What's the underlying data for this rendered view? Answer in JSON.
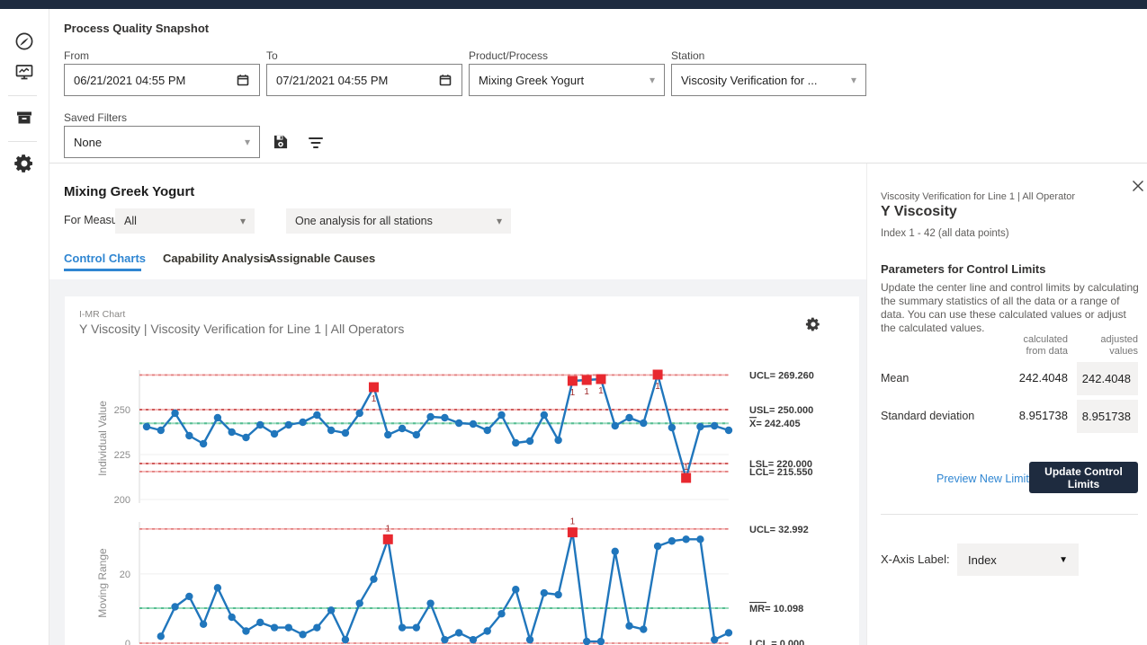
{
  "filters": {
    "title": "Process Quality Snapshot",
    "from": {
      "label": "From",
      "value": "06/21/2021 04:55 PM"
    },
    "to": {
      "label": "To",
      "value": "07/21/2021 04:55 PM"
    },
    "product": {
      "label": "Product/Process",
      "value": "Mixing Greek Yogurt"
    },
    "station": {
      "label": "Station",
      "value": "Viscosity Verification for ..."
    },
    "saved_filters": {
      "label": "Saved Filters",
      "value": "None"
    }
  },
  "main": {
    "heading": "Mixing Greek Yogurt",
    "for_measure_label": "For Measure:",
    "measure_value": "All",
    "analysis_value": "One analysis for all stations",
    "tabs": [
      {
        "label": "Control Charts",
        "active": true
      },
      {
        "label": "Capability Analysis",
        "active": false
      },
      {
        "label": "Assignable Causes",
        "active": false
      }
    ],
    "chart_card": {
      "type_label": "I-MR Chart",
      "title": "Y Viscosity | Viscosity Verification for Line 1 | All Operators"
    }
  },
  "panel": {
    "context": "Viscosity Verification for Line 1 | All Operator",
    "title": "Y Viscosity",
    "index_range": "Index 1 - 42 (all data points)",
    "section_title": "Parameters for Control Limits",
    "description": "Update the center line and control limits by calculating the summary statistics of all the data or a range of data. You can use these calculated values or adjust the calculated values.",
    "value_headers": [
      {
        "l1": "calculated",
        "l2": "from data"
      },
      {
        "l1": "adjusted",
        "l2": "values"
      }
    ],
    "rows": [
      {
        "label": "Mean",
        "calculated": "242.4048",
        "adjusted": "242.4048"
      },
      {
        "label": "Standard deviation",
        "calculated": "8.951738",
        "adjusted": "8.951738"
      }
    ],
    "preview_link": "Preview New Limits",
    "update_button": "Update Control Limits",
    "xaxis_label": "X-Axis Label:",
    "xaxis_value": "Index"
  },
  "colors": {
    "navy": "#1e2b3f",
    "accent_blue": "#2f86d2",
    "chart_blue": "#2076bc",
    "flag_red": "#e8282f",
    "flag_label": "#9e2a2b",
    "limit_pink": "#f5aeae",
    "spec_dash_red": "#bf3636",
    "center_green": "#57bd92",
    "center_base": "#9adbbd"
  },
  "chart_data": [
    {
      "type": "line",
      "name": "individual",
      "ylabel": "Individual Value",
      "yticks": [
        200,
        225,
        250
      ],
      "ylim": [
        200,
        272
      ],
      "start_index": 1,
      "values": [
        240.5,
        238.5,
        248,
        235.5,
        231,
        245.5,
        237.5,
        234.5,
        241.5,
        236.5,
        241.5,
        243,
        247,
        238.5,
        237,
        248,
        262.5,
        236,
        239.5,
        236,
        246,
        245.5,
        242.5,
        242,
        238.5,
        247,
        231.5,
        232.5,
        247,
        233,
        266,
        266.5,
        267,
        241,
        245.5,
        242.5,
        269.5,
        240,
        212,
        240.5,
        241,
        238.5
      ],
      "flagged_indices": [
        17,
        31,
        32,
        33,
        37,
        39
      ],
      "flag_label": "1",
      "flag_label_above_always": false,
      "center_value": 242.405,
      "limits": [
        {
          "label": "UCL= 269.260",
          "value": 269.26,
          "style": "control",
          "overline_w": 0
        },
        {
          "label": "USL= 250.000",
          "value": 250.0,
          "style": "spec",
          "overline_w": 0
        },
        {
          "label": "X= 242.405",
          "value": 242.405,
          "style": "center",
          "overline_w": 8
        },
        {
          "label": "LSL= 220.000",
          "value": 220.0,
          "style": "spec",
          "overline_w": 0
        },
        {
          "label": "LCL= 215.550",
          "value": 215.55,
          "style": "control",
          "overline_w": 0
        }
      ]
    },
    {
      "type": "line",
      "name": "moving-range",
      "ylabel": "Moving Range",
      "yticks": [
        0,
        20
      ],
      "ylim": [
        0,
        35
      ],
      "start_index": 2,
      "values": [
        2,
        10.5,
        13.5,
        5.5,
        16,
        7.5,
        3.5,
        6,
        4.5,
        4.5,
        2.5,
        4.5,
        9.5,
        1,
        11.5,
        18.5,
        30,
        4.5,
        4.5,
        11.5,
        1,
        3,
        1,
        3.5,
        8.5,
        15.5,
        1,
        14.5,
        14,
        32,
        0.5,
        0.5,
        26.5,
        5,
        4,
        28,
        29.5,
        30,
        30,
        1,
        3
      ],
      "flagged_indices": [
        18,
        31
      ],
      "flag_label": "1",
      "flag_label_above_always": true,
      "center_value": 10.098,
      "limits": [
        {
          "label": "UCL= 32.992",
          "value": 32.992,
          "style": "control",
          "overline_w": 0
        },
        {
          "label": "MR= 10.098",
          "value": 10.098,
          "style": "center",
          "overline_w": 19
        },
        {
          "label": "LCL = 0.000",
          "value": 0.0,
          "style": "control",
          "overline_w": 0
        }
      ]
    }
  ]
}
